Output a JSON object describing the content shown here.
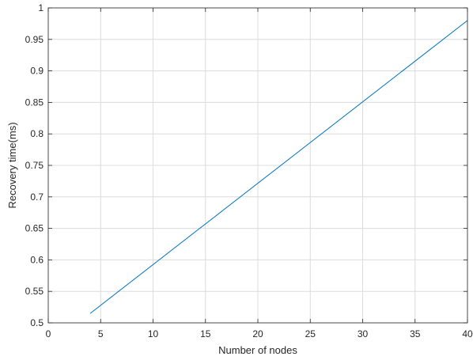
{
  "chart_data": {
    "type": "line",
    "title": "",
    "xlabel": "Number of nodes",
    "ylabel": "Recovery time(ms)",
    "xlim": [
      0,
      40
    ],
    "ylim": [
      0.5,
      1
    ],
    "grid": true,
    "xticks": [
      0,
      5,
      10,
      15,
      20,
      25,
      30,
      35,
      40
    ],
    "xtick_labels": [
      "0",
      "5",
      "10",
      "15",
      "20",
      "25",
      "30",
      "35",
      "40"
    ],
    "yticks": [
      0.5,
      0.55,
      0.6,
      0.65,
      0.7,
      0.75,
      0.8,
      0.85,
      0.9,
      0.95,
      1
    ],
    "ytick_labels": [
      "0.5",
      "0.55",
      "0.6",
      "0.65",
      "0.7",
      "0.75",
      "0.8",
      "0.85",
      "0.9",
      "0.95",
      "1"
    ],
    "series": [
      {
        "color": "#0072bd",
        "x": [
          4,
          40
        ],
        "y": [
          0.515,
          0.98
        ]
      }
    ],
    "colors": {
      "axis": "#262626",
      "grid": "#dcdcdc",
      "background": "#ffffff"
    }
  }
}
